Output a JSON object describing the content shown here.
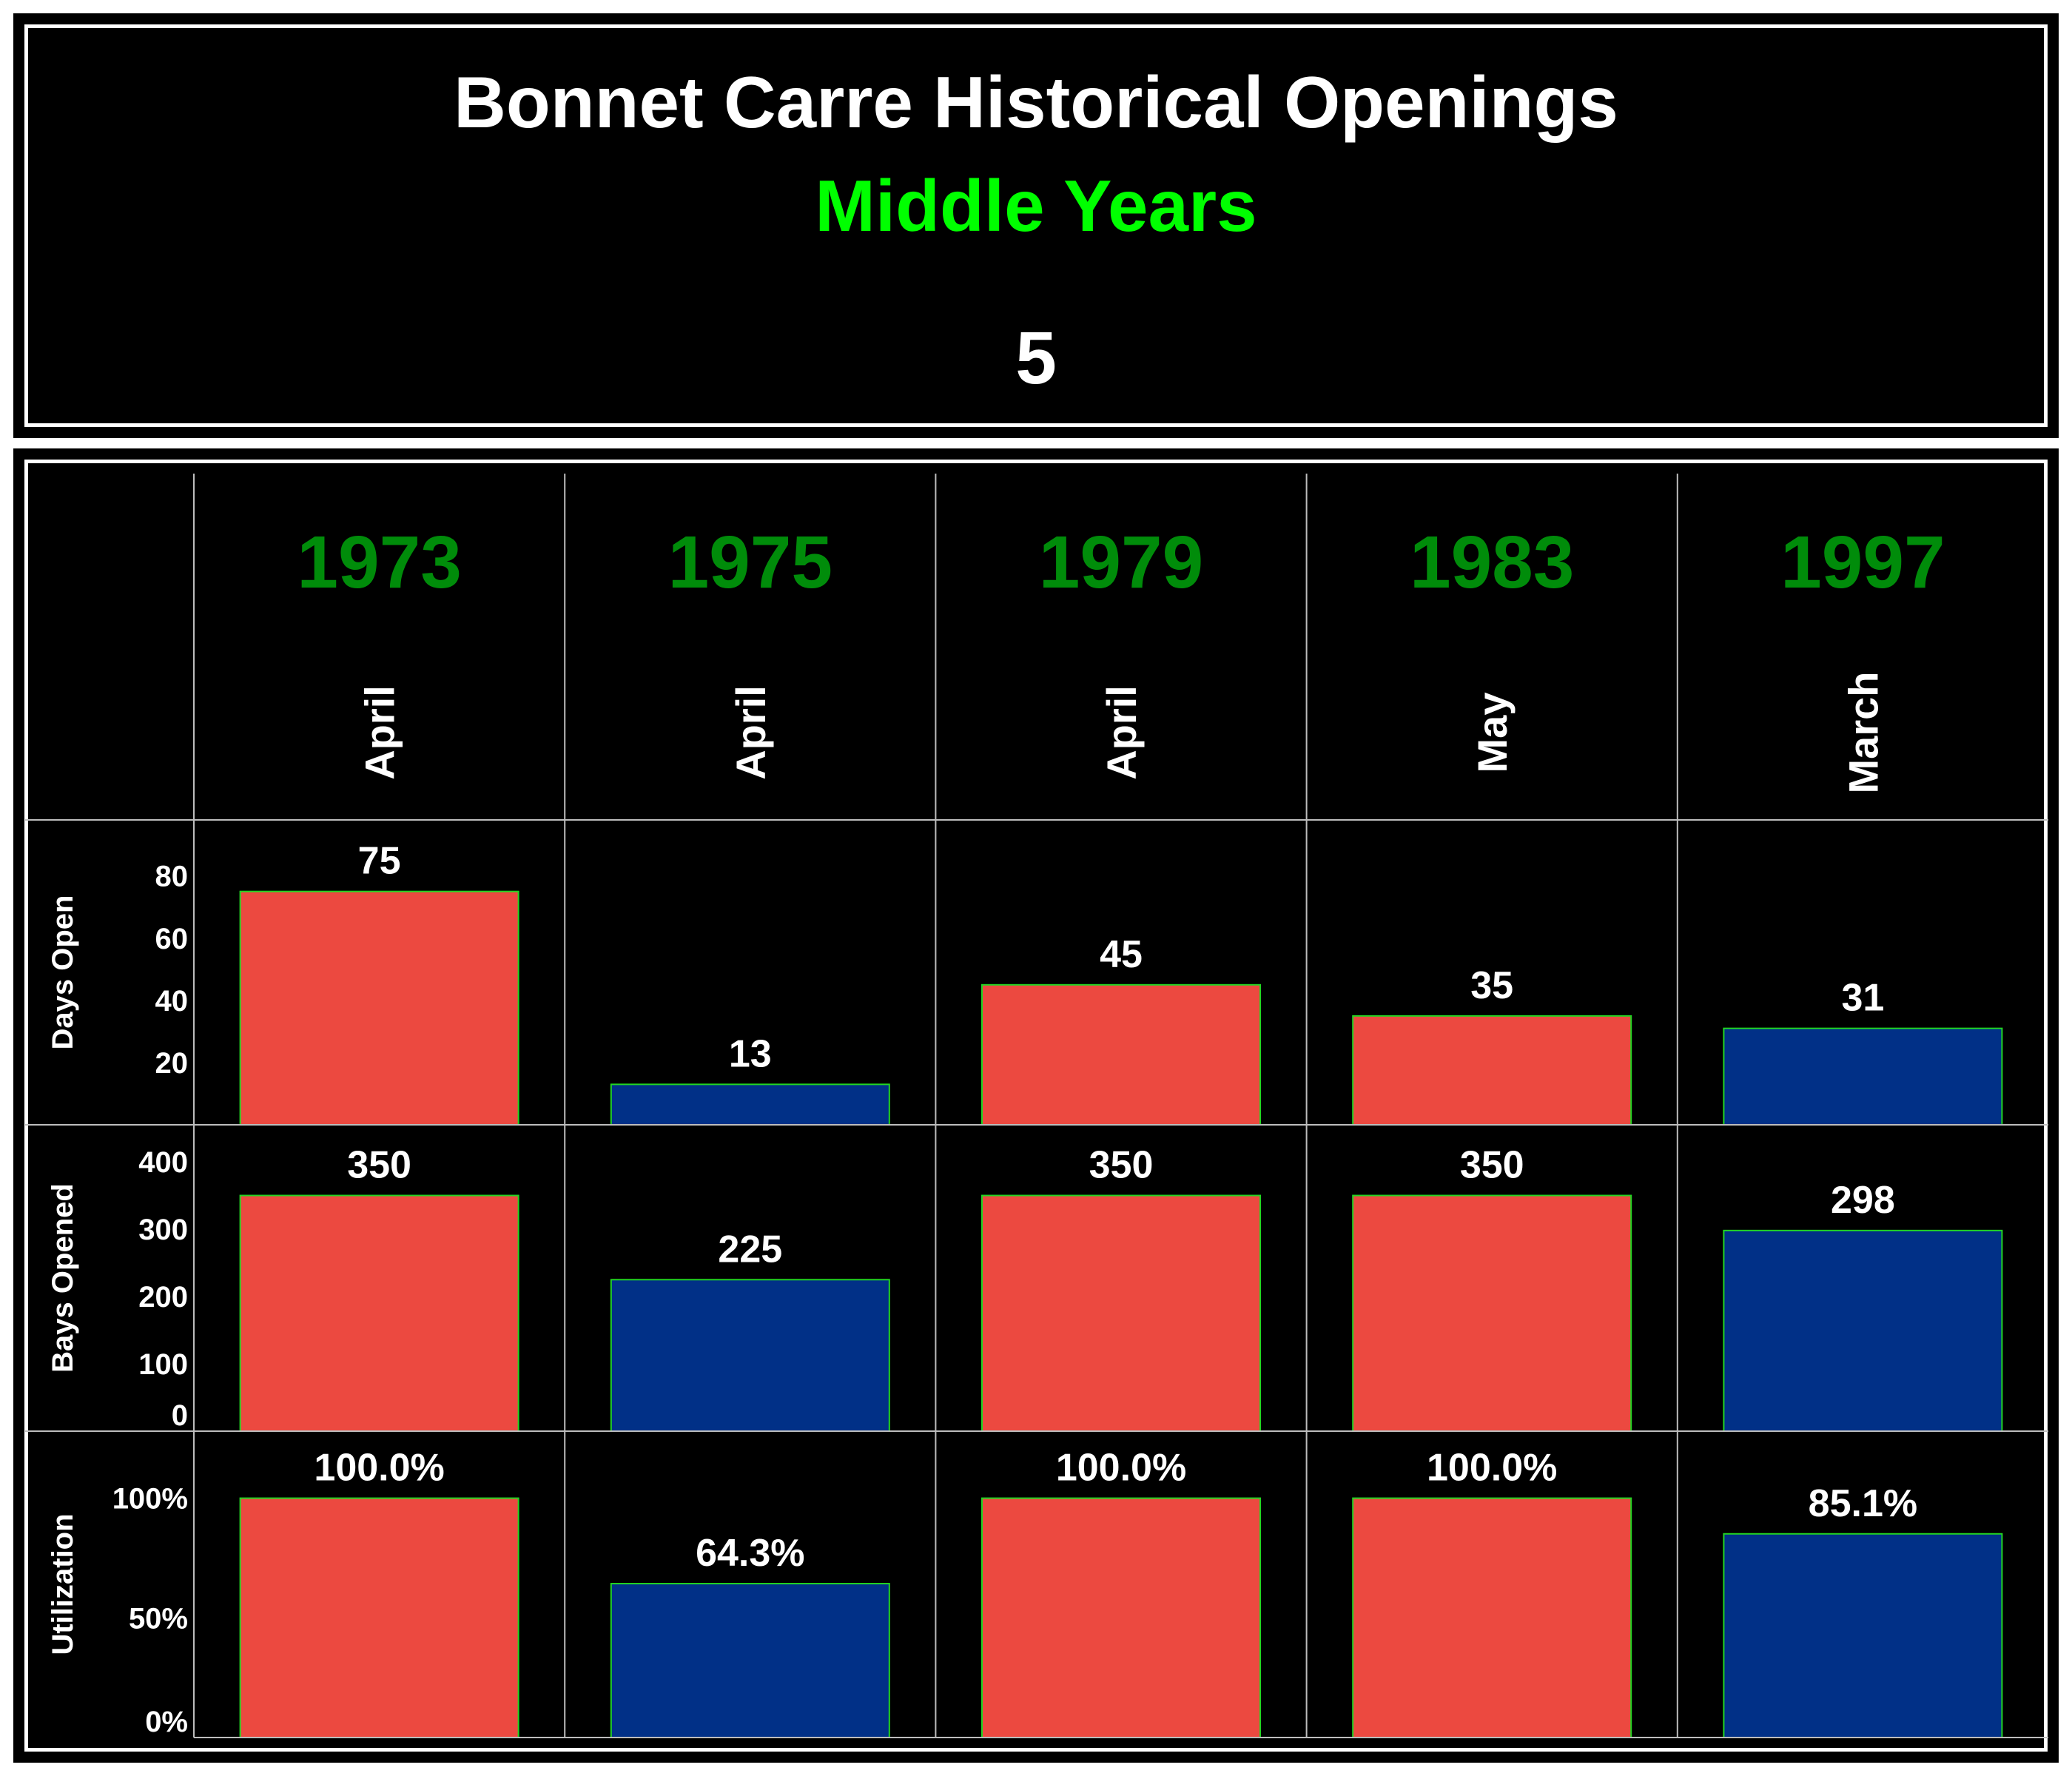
{
  "header": {
    "title": "Bonnet Carre Historical Openings",
    "subtitle": "Middle Years",
    "count": "5"
  },
  "colors": {
    "background": "#000000",
    "title": "#ffffff",
    "subtitle": "#00ff00",
    "year": "#008c0a",
    "bar_red": "#ec4940",
    "bar_blue": "#013087",
    "bar_outline": "#22d522",
    "grid": "#bdbdbd"
  },
  "chart_data": {
    "type": "bar",
    "categories": [
      "1973",
      "1975",
      "1979",
      "1983",
      "1997"
    ],
    "months": [
      "April",
      "April",
      "April",
      "May",
      "March"
    ],
    "bar_colors": [
      "red",
      "blue",
      "red",
      "red",
      "blue"
    ],
    "panels": [
      {
        "ylabel": "Days Open",
        "values": [
          75,
          13,
          45,
          35,
          31
        ],
        "labels": [
          "75",
          "13",
          "45",
          "35",
          "31"
        ],
        "ticks": [
          20,
          40,
          60,
          80
        ],
        "tick_labels": [
          "20",
          "40",
          "60",
          "80"
        ],
        "ylim": [
          0,
          98
        ]
      },
      {
        "ylabel": "Bays Opened",
        "values": [
          350,
          225,
          350,
          350,
          298
        ],
        "labels": [
          "350",
          "225",
          "350",
          "350",
          "298"
        ],
        "ticks": [
          0,
          100,
          200,
          300,
          400
        ],
        "tick_labels": [
          "0",
          "100",
          "200",
          "300",
          "400"
        ],
        "ylim": [
          0,
          455
        ]
      },
      {
        "ylabel": "Utilization",
        "values": [
          100.0,
          64.3,
          100.0,
          100.0,
          85.1
        ],
        "labels": [
          "100.0%",
          "64.3%",
          "100.0%",
          "100.0%",
          "85.1%"
        ],
        "ticks": [
          0,
          50,
          100
        ],
        "tick_labels": [
          "0%",
          "50%",
          "100%"
        ],
        "ylim": [
          0,
          128
        ]
      }
    ],
    "grid": true
  }
}
